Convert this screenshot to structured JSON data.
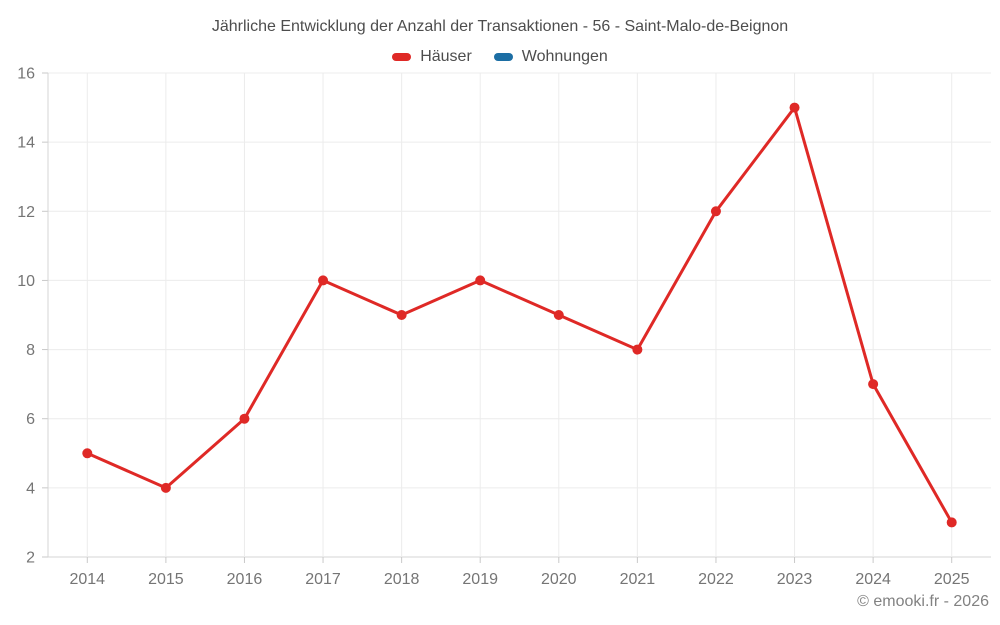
{
  "page": {
    "copyright": "© emooki.fr - 2026"
  },
  "chart_data": {
    "type": "line",
    "title": "Jährliche Entwicklung der Anzahl der Transaktionen - 56 - Saint-Malo-de-Beignon",
    "categories": [
      "2014",
      "2015",
      "2016",
      "2017",
      "2018",
      "2019",
      "2020",
      "2021",
      "2022",
      "2023",
      "2024",
      "2025"
    ],
    "series": [
      {
        "name": "Häuser",
        "color": "#df2926",
        "values": [
          5,
          4,
          6,
          10,
          9,
          10,
          9,
          8,
          12,
          15,
          7,
          3
        ]
      },
      {
        "name": "Wohnungen",
        "color": "#1c6ea4",
        "values": []
      }
    ],
    "xlabel": "",
    "ylabel": "",
    "ylim": [
      2,
      16
    ],
    "ytick_step": 2,
    "grid": true,
    "legend_position": "top",
    "style": {
      "grid_color": "#ececec",
      "axis_color": "#d4d4d4",
      "tick_color": "#c9c9c9",
      "label_color": "#757575",
      "point_radius": 5,
      "line_width": 3
    }
  }
}
